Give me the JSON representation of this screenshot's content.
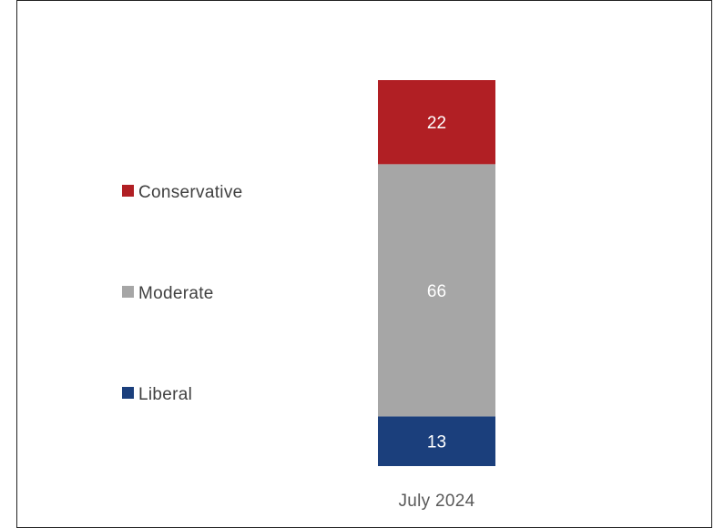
{
  "chart_data": {
    "type": "bar",
    "stacked": true,
    "categories": [
      "July 2024"
    ],
    "series": [
      {
        "name": "Liberal",
        "values": [
          13
        ],
        "color": "#1b3f7c"
      },
      {
        "name": "Moderate",
        "values": [
          66
        ],
        "color": "#a6a6a6"
      },
      {
        "name": "Conservative",
        "values": [
          22
        ],
        "color": "#b11f24"
      }
    ],
    "data_labels": true,
    "legend_position": "left",
    "grid": false,
    "ylim": [
      0,
      101
    ]
  }
}
